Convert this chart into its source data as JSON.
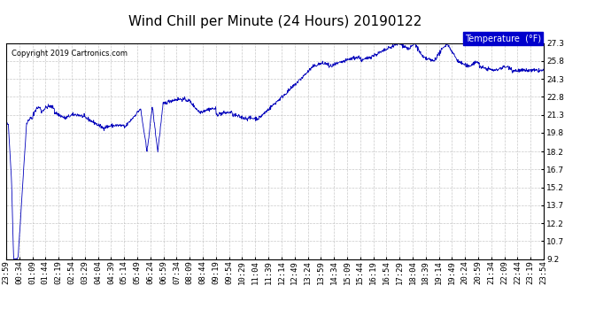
{
  "title": "Wind Chill per Minute (24 Hours) 20190122",
  "copyright": "Copyright 2019 Cartronics.com",
  "legend_label": "Temperature  (°F)",
  "line_color": "#0000bb",
  "background_color": "#ffffff",
  "plot_bg_color": "#ffffff",
  "grid_color": "#bbbbbb",
  "ylim": [
    9.2,
    27.3
  ],
  "yticks": [
    9.2,
    10.7,
    12.2,
    13.7,
    15.2,
    16.7,
    18.2,
    19.8,
    21.3,
    22.8,
    24.3,
    25.8,
    27.3
  ],
  "x_labels": [
    "23:59",
    "00:34",
    "01:09",
    "01:44",
    "02:19",
    "02:54",
    "03:29",
    "04:04",
    "04:39",
    "05:14",
    "05:49",
    "06:24",
    "06:59",
    "07:34",
    "08:09",
    "08:44",
    "09:19",
    "09:54",
    "10:29",
    "11:04",
    "11:39",
    "12:14",
    "12:49",
    "13:24",
    "13:59",
    "14:34",
    "15:09",
    "15:44",
    "16:19",
    "16:54",
    "17:29",
    "18:04",
    "18:39",
    "19:14",
    "19:49",
    "20:24",
    "20:59",
    "21:34",
    "22:09",
    "22:44",
    "23:19",
    "23:54"
  ],
  "title_fontsize": 11,
  "tick_fontsize": 6.5
}
